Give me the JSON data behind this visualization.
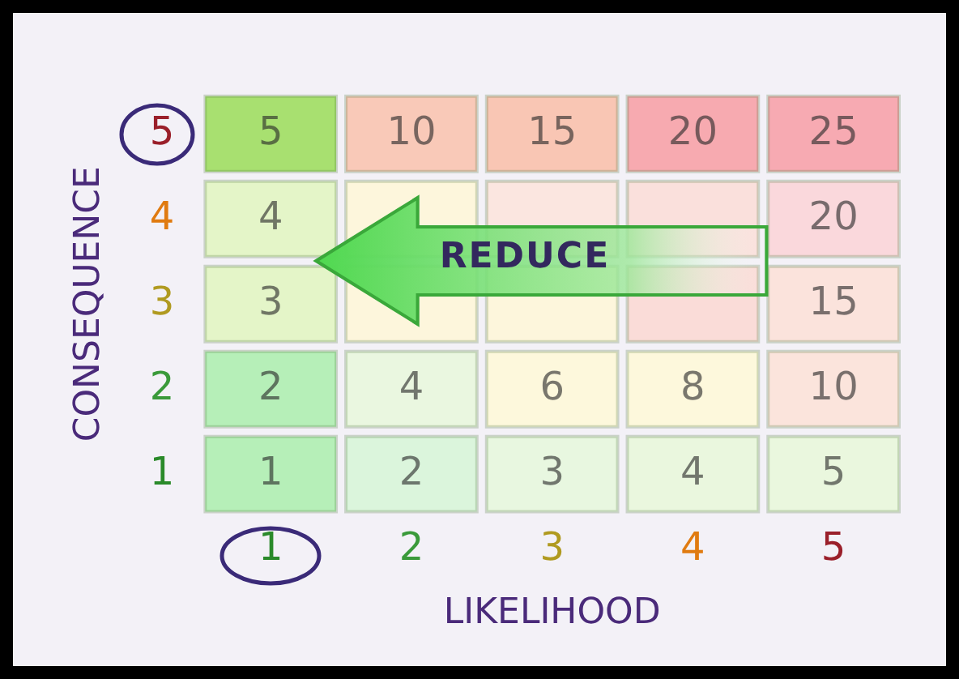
{
  "chart_data": {
    "type": "heatmap",
    "xlabel": "LIKELIHOOD",
    "ylabel": "CONSEQUENCE",
    "categories": [
      "1",
      "2",
      "3",
      "4",
      "5"
    ],
    "y_categories": [
      "5",
      "4",
      "3",
      "2",
      "1"
    ],
    "cells": [
      [
        5,
        10,
        15,
        20,
        25
      ],
      [
        4,
        null,
        null,
        null,
        20
      ],
      [
        3,
        null,
        null,
        null,
        15
      ],
      [
        2,
        4,
        6,
        8,
        10
      ],
      [
        1,
        2,
        3,
        4,
        5
      ]
    ],
    "colors": [
      [
        "#a8e070",
        "#f9c9b8",
        "#f9c6b4",
        "#f7aab0",
        "#f7aab2"
      ],
      [
        "#e4f5c8",
        "#fdf6dc",
        "#fbe6e0",
        "#fae0dc",
        "#fad8dc"
      ],
      [
        "#e4f5c8",
        "#fdf6dc",
        "#fdf6dc",
        "#fadcd8",
        "#fbe3dc"
      ],
      [
        "#b6efb8",
        "#eaf7e0",
        "#fdf8dc",
        "#fdf8dc",
        "#fbe4dc"
      ],
      [
        "#b6efb8",
        "#dbf5dc",
        "#e8f7e0",
        "#eaf7de",
        "#eaf7de"
      ]
    ],
    "annotations": [
      "REDUCE"
    ],
    "data_labels": true,
    "grid": false,
    "legend": false
  }
}
